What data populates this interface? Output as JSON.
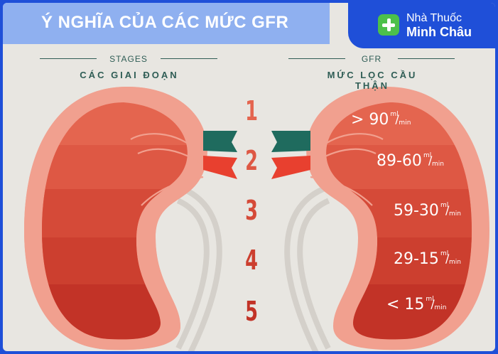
{
  "header": {
    "title": "Ý NGHĨA CỦA CÁC MỨC GFR",
    "brand_line1": "Nhà Thuốc",
    "brand_line2": "Minh Châu",
    "brand_icon": "plus-cross-icon"
  },
  "columns": {
    "left_en": "STAGES",
    "left_vi": "CÁC GIAI ĐOẠN",
    "right_en": "GFR",
    "right_vi": "MỨC LỌC CẦU THẬN"
  },
  "stages": [
    {
      "number": "1",
      "value": "> 90",
      "unit_top": "ml",
      "unit_bottom": "min",
      "color": "#e4654f"
    },
    {
      "number": "2",
      "value": "89-60",
      "unit_top": "ml",
      "unit_bottom": "min",
      "color": "#de5844"
    },
    {
      "number": "3",
      "value": "59-30",
      "unit_top": "ml",
      "unit_bottom": "min",
      "color": "#d54a38"
    },
    {
      "number": "4",
      "value": "29-15",
      "unit_top": "ml",
      "unit_bottom": "min",
      "color": "#cc3f2f"
    },
    {
      "number": "5",
      "value": "< 15",
      "unit_top": "ml",
      "unit_bottom": "min",
      "color": "#c23327"
    }
  ],
  "colors": {
    "background": "#e8e6e1",
    "frame": "#1f4fd8",
    "title_bar": "#8fb0f0",
    "kidney_outer": "#f1a08f",
    "vessel_teal": "#1f6b5e",
    "vessel_red": "#e8402f"
  }
}
